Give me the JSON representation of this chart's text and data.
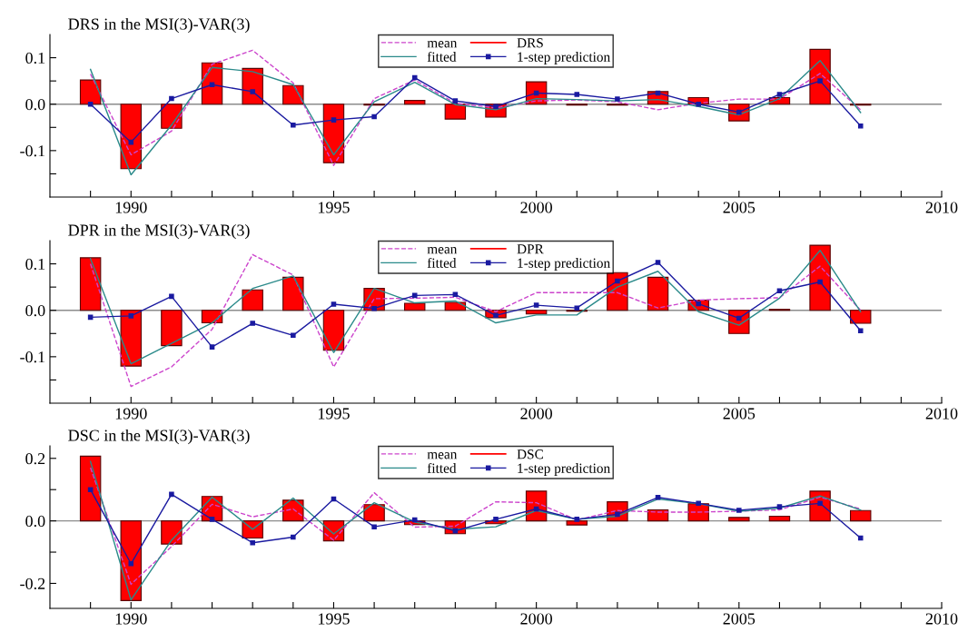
{
  "chart_data": [
    {
      "type": "bar",
      "title": "DRS in the MSI(3)-VAR(3)",
      "x": [
        1989,
        1990,
        1991,
        1992,
        1993,
        1994,
        1995,
        1996,
        1997,
        1998,
        1999,
        2000,
        2001,
        2002,
        2003,
        2004,
        2005,
        2006,
        2007,
        2008
      ],
      "xlim": [
        1988,
        2010
      ],
      "xticks": [
        {
          "value": 1989,
          "label": null
        },
        1990,
        {
          "value": 1991,
          "label": null
        },
        {
          "value": 1992,
          "label": null
        },
        {
          "value": 1993,
          "label": null
        },
        {
          "value": 1994,
          "label": null
        },
        1995,
        {
          "value": 1996,
          "label": null
        },
        {
          "value": 1997,
          "label": null
        },
        {
          "value": 1998,
          "label": null
        },
        {
          "value": 1999,
          "label": null
        },
        2000,
        {
          "value": 2001,
          "label": null
        },
        {
          "value": 2002,
          "label": null
        },
        {
          "value": 2003,
          "label": null
        },
        {
          "value": 2004,
          "label": null
        },
        2005,
        {
          "value": 2006,
          "label": null
        },
        {
          "value": 2007,
          "label": null
        },
        {
          "value": 2008,
          "label": null
        },
        {
          "value": 2009,
          "label": null
        },
        2010
      ],
      "ylim": [
        -0.2,
        0.15
      ],
      "yticks": [
        {
          "value": -0.15,
          "label": null
        },
        -0.1,
        {
          "value": -0.05,
          "label": null
        },
        {
          "value": 0,
          "label": "0.0"
        },
        {
          "value": 0.05,
          "label": null
        },
        0.1
      ],
      "ref_lines": [
        {
          "axis": "y",
          "value": 0,
          "label": null,
          "color": "#8c8c8c"
        }
      ],
      "legend": "top",
      "grid": false,
      "series": [
        {
          "name": "mean",
          "type": "line",
          "color": "#cc44cc",
          "line_style": "dashed",
          "marker": "none",
          "values": [
            0.065,
            -0.109,
            -0.058,
            0.086,
            0.116,
            0.046,
            -0.132,
            0.012,
            0.052,
            0.002,
            -0.008,
            0.007,
            0.009,
            0.005,
            -0.012,
            0.002,
            0.011,
            0.011,
            0.066,
            -0.012
          ]
        },
        {
          "name": "fitted",
          "type": "line",
          "color": "#2a8a8a",
          "line_style": "solid",
          "marker": "none",
          "values": [
            0.075,
            -0.152,
            -0.045,
            0.079,
            0.07,
            0.042,
            -0.109,
            0.005,
            0.047,
            -0.001,
            -0.012,
            0.012,
            0.01,
            0.007,
            0.01,
            -0.005,
            -0.023,
            0.012,
            0.094,
            -0.018
          ]
        },
        {
          "name": "DRS",
          "color": "#ff0000",
          "values": [
            0.052,
            -0.139,
            -0.052,
            0.089,
            0.077,
            0.04,
            -0.126,
            -0.002,
            0.008,
            -0.032,
            -0.028,
            0.048,
            -0.002,
            -0.002,
            0.027,
            0.014,
            -0.036,
            0.014,
            0.118,
            -0.002
          ]
        },
        {
          "name": "1-step prediction",
          "type": "line",
          "color": "#1a1aa0",
          "line_style": "solid",
          "marker": "square",
          "values": [
            0.0,
            -0.082,
            0.012,
            0.042,
            0.027,
            -0.045,
            -0.034,
            -0.027,
            0.057,
            0.007,
            -0.005,
            0.024,
            0.021,
            0.011,
            0.024,
            0.0,
            -0.017,
            0.021,
            0.05,
            -0.047
          ]
        }
      ]
    },
    {
      "type": "bar",
      "title": "DPR in the MSI(3)-VAR(3)",
      "x": [
        1989,
        1990,
        1991,
        1992,
        1993,
        1994,
        1995,
        1996,
        1997,
        1998,
        1999,
        2000,
        2001,
        2002,
        2003,
        2004,
        2005,
        2006,
        2007,
        2008
      ],
      "xlim": [
        1988,
        2010
      ],
      "xticks": [
        {
          "value": 1989,
          "label": null
        },
        1990,
        {
          "value": 1991,
          "label": null
        },
        {
          "value": 1992,
          "label": null
        },
        {
          "value": 1993,
          "label": null
        },
        {
          "value": 1994,
          "label": null
        },
        1995,
        {
          "value": 1996,
          "label": null
        },
        {
          "value": 1997,
          "label": null
        },
        {
          "value": 1998,
          "label": null
        },
        {
          "value": 1999,
          "label": null
        },
        2000,
        {
          "value": 2001,
          "label": null
        },
        {
          "value": 2002,
          "label": null
        },
        {
          "value": 2003,
          "label": null
        },
        {
          "value": 2004,
          "label": null
        },
        2005,
        {
          "value": 2006,
          "label": null
        },
        {
          "value": 2007,
          "label": null
        },
        {
          "value": 2008,
          "label": null
        },
        {
          "value": 2009,
          "label": null
        },
        2010
      ],
      "ylim": [
        -0.2,
        0.15
      ],
      "yticks": [
        {
          "value": -0.15,
          "label": null
        },
        -0.1,
        {
          "value": -0.05,
          "label": null
        },
        {
          "value": 0,
          "label": "0.0"
        },
        {
          "value": 0.05,
          "label": null
        },
        0.1
      ],
      "ref_lines": [
        {
          "axis": "y",
          "value": 0,
          "label": null,
          "color": "#8c8c8c"
        }
      ],
      "legend": "top",
      "grid": false,
      "series": [
        {
          "name": "mean",
          "type": "line",
          "color": "#cc44cc",
          "line_style": "dashed",
          "marker": "none",
          "values": [
            0.1,
            -0.164,
            -0.122,
            -0.041,
            0.12,
            0.076,
            -0.122,
            0.025,
            0.026,
            0.028,
            -0.003,
            0.038,
            0.038,
            0.038,
            0.005,
            0.022,
            0.025,
            0.027,
            0.095,
            0.0
          ]
        },
        {
          "name": "fitted",
          "type": "line",
          "color": "#2a8a8a",
          "line_style": "solid",
          "marker": "none",
          "values": [
            0.111,
            -0.115,
            -0.071,
            -0.027,
            0.047,
            0.074,
            -0.091,
            0.047,
            0.016,
            0.02,
            -0.027,
            -0.01,
            -0.01,
            0.05,
            0.084,
            -0.003,
            -0.032,
            0.026,
            0.129,
            -0.003
          ]
        },
        {
          "name": "DPR",
          "color": "#ff0000",
          "values": [
            0.113,
            -0.12,
            -0.076,
            -0.027,
            0.044,
            0.071,
            -0.086,
            0.047,
            0.015,
            0.017,
            -0.016,
            -0.008,
            -0.002,
            0.081,
            0.071,
            0.022,
            -0.05,
            0.002,
            0.14,
            -0.028
          ]
        },
        {
          "name": "1-step prediction",
          "type": "line",
          "color": "#1a1aa0",
          "line_style": "solid",
          "marker": "square",
          "values": [
            -0.015,
            -0.012,
            0.03,
            -0.079,
            -0.028,
            -0.054,
            0.013,
            0.004,
            0.032,
            0.034,
            -0.011,
            0.011,
            0.005,
            0.063,
            0.103,
            0.014,
            -0.017,
            0.042,
            0.061,
            -0.044
          ]
        }
      ]
    },
    {
      "type": "bar",
      "title": "DSC in the MSI(3)-VAR(3)",
      "x": [
        1989,
        1990,
        1991,
        1992,
        1993,
        1994,
        1995,
        1996,
        1997,
        1998,
        1999,
        2000,
        2001,
        2002,
        2003,
        2004,
        2005,
        2006,
        2007,
        2008
      ],
      "xlim": [
        1988,
        2010
      ],
      "xticks": [
        {
          "value": 1989,
          "label": null
        },
        1990,
        {
          "value": 1991,
          "label": null
        },
        {
          "value": 1992,
          "label": null
        },
        {
          "value": 1993,
          "label": null
        },
        {
          "value": 1994,
          "label": null
        },
        1995,
        {
          "value": 1996,
          "label": null
        },
        {
          "value": 1997,
          "label": null
        },
        {
          "value": 1998,
          "label": null
        },
        {
          "value": 1999,
          "label": null
        },
        2000,
        {
          "value": 2001,
          "label": null
        },
        {
          "value": 2002,
          "label": null
        },
        {
          "value": 2003,
          "label": null
        },
        {
          "value": 2004,
          "label": null
        },
        2005,
        {
          "value": 2006,
          "label": null
        },
        {
          "value": 2007,
          "label": null
        },
        {
          "value": 2008,
          "label": null
        },
        {
          "value": 2009,
          "label": null
        },
        2010
      ],
      "ylim": [
        -0.28,
        0.24
      ],
      "yticks": [
        -0.2,
        {
          "value": -0.1,
          "label": null
        },
        {
          "value": 0,
          "label": "0.0"
        },
        {
          "value": 0.1,
          "label": null
        },
        0.2
      ],
      "ref_lines": [
        {
          "axis": "y",
          "value": 0,
          "label": null,
          "color": "#8c8c8c"
        }
      ],
      "legend": "top",
      "grid": false,
      "series": [
        {
          "name": "mean",
          "type": "line",
          "color": "#cc44cc",
          "line_style": "dashed",
          "marker": "none",
          "values": [
            0.17,
            -0.203,
            -0.082,
            0.053,
            0.013,
            0.038,
            -0.062,
            0.09,
            -0.02,
            -0.017,
            0.061,
            0.058,
            0.003,
            0.033,
            0.028,
            0.028,
            0.031,
            0.035,
            0.076,
            0.038
          ]
        },
        {
          "name": "fitted",
          "type": "line",
          "color": "#2a8a8a",
          "line_style": "solid",
          "marker": "none",
          "values": [
            0.19,
            -0.253,
            -0.062,
            0.076,
            -0.027,
            0.073,
            -0.042,
            0.058,
            -0.004,
            -0.027,
            -0.019,
            0.033,
            0.005,
            0.015,
            0.07,
            0.055,
            0.031,
            0.041,
            0.08,
            0.035
          ]
        },
        {
          "name": "DSC",
          "color": "#ff0000",
          "values": [
            0.207,
            -0.255,
            -0.074,
            0.078,
            -0.055,
            0.066,
            -0.064,
            0.052,
            -0.012,
            -0.041,
            -0.009,
            0.095,
            -0.013,
            0.061,
            0.035,
            0.055,
            0.011,
            0.015,
            0.095,
            0.033
          ]
        },
        {
          "name": "1-step prediction",
          "type": "line",
          "color": "#1a1aa0",
          "line_style": "solid",
          "marker": "square",
          "values": [
            0.1,
            -0.137,
            0.085,
            0.005,
            -0.07,
            -0.052,
            0.07,
            -0.019,
            0.003,
            -0.032,
            0.005,
            0.038,
            0.005,
            0.021,
            0.075,
            0.056,
            0.034,
            0.045,
            0.056,
            -0.055
          ]
        }
      ]
    }
  ]
}
